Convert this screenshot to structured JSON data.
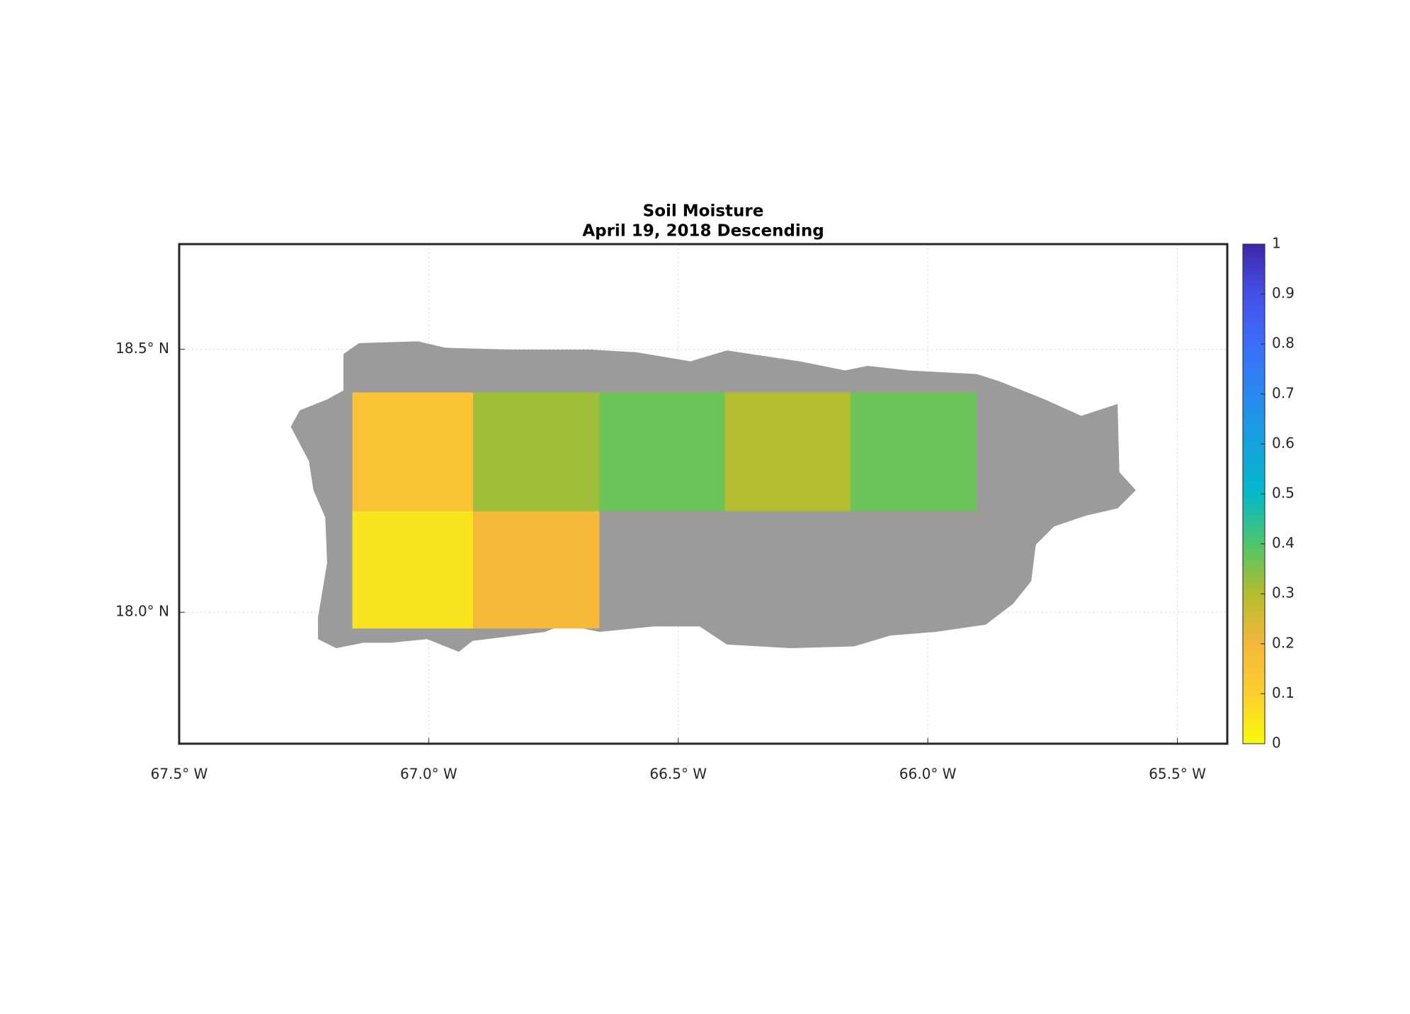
{
  "chart_data": {
    "type": "gridmap",
    "title": "Soil Moisture",
    "subtitle": "April 19, 2018 Descending",
    "xlim": [
      -67.5,
      -65.4
    ],
    "ylim": [
      17.75,
      18.7
    ],
    "xticks": [
      {
        "value": -67.5,
        "label": "67.5° W"
      },
      {
        "value": -67.0,
        "label": "67.0° W"
      },
      {
        "value": -66.5,
        "label": "66.5° W"
      },
      {
        "value": -66.0,
        "label": "66.0° W"
      },
      {
        "value": -65.5,
        "label": "65.5° W"
      }
    ],
    "yticks": [
      {
        "value": 18.0,
        "label": "18.0° N"
      },
      {
        "value": 18.5,
        "label": "18.5° N"
      }
    ],
    "grid": true,
    "lon_edges": [
      -67.153,
      -66.911,
      -66.658,
      -66.407,
      -66.155,
      -65.902
    ],
    "lat_edges": [
      18.418,
      18.192,
      17.969
    ],
    "values": [
      [
        0.15,
        0.32,
        0.37,
        0.3,
        0.37
      ],
      [
        0.05,
        0.19,
        null,
        null,
        null
      ]
    ],
    "clim": [
      0,
      1
    ],
    "cticks": [
      0,
      0.1,
      0.2,
      0.3,
      0.4,
      0.5,
      0.6,
      0.7,
      0.8,
      0.9,
      1
    ],
    "colormap": [
      "#f8fa0d",
      "#fcce2e",
      "#f5b73b",
      "#b4bd2f",
      "#4dc56a",
      "#06b8c9",
      "#15a3dc",
      "#2a88f0",
      "#3b6ef8",
      "#4550e8",
      "#3e26a8"
    ]
  }
}
